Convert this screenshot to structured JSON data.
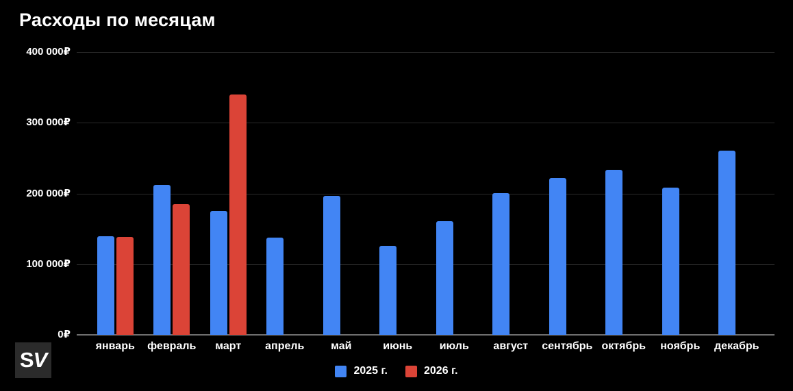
{
  "chart_data": {
    "type": "bar",
    "title": "Расходы по месяцам",
    "categories": [
      "январь",
      "февраль",
      "март",
      "апрель",
      "май",
      "июнь",
      "июль",
      "август",
      "сентябрь",
      "октябрь",
      "ноябрь",
      "декабрь"
    ],
    "series": [
      {
        "name": "2025 г.",
        "color": "#4285f4",
        "values": [
          140000,
          212000,
          175000,
          138000,
          197000,
          126000,
          161000,
          201000,
          222000,
          233000,
          208000,
          261000
        ]
      },
      {
        "name": "2026 г.",
        "color": "#db4437",
        "values": [
          139000,
          185000,
          340000,
          null,
          null,
          null,
          null,
          null,
          null,
          null,
          null,
          null
        ]
      }
    ],
    "ylabel": "",
    "xlabel": "",
    "ylim": [
      0,
      400000
    ],
    "y_ticks": [
      {
        "value": 400000,
        "label": "400 000₽"
      },
      {
        "value": 300000,
        "label": "300 000₽"
      },
      {
        "value": 200000,
        "label": "200 000₽"
      },
      {
        "value": 100000,
        "label": "100 000₽"
      },
      {
        "value": 0,
        "label": "0₽"
      }
    ],
    "grid": true,
    "legend_position": "bottom"
  },
  "watermark": {
    "text_s": "S",
    "text_v": "V"
  },
  "colors": {
    "background": "#000000",
    "text": "#ffffff",
    "gridline": "#2b2b2b",
    "axis_line": "#6f6f6f",
    "series_2025": "#4285f4",
    "series_2026": "#db4437"
  }
}
